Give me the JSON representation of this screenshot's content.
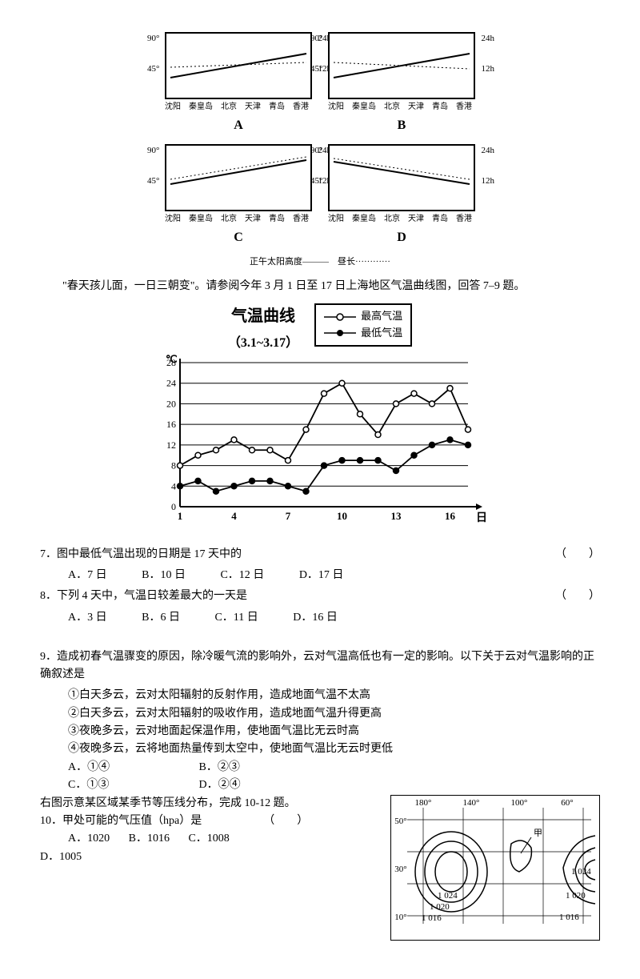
{
  "panelCharts": {
    "yLeft": [
      "90°",
      "45°"
    ],
    "yRight": [
      "24h",
      "12h"
    ],
    "xCities": [
      "沈阳",
      "秦皇岛",
      "北京",
      "天津",
      "青岛",
      "香港"
    ],
    "labels": [
      "A",
      "B",
      "C",
      "D"
    ],
    "legendText": "正午太阳高度———    昼长············"
  },
  "introText": "\"春天孩儿面，一日三朝变\"。请参阅今年 3 月 1 日至 17 日上海地区气温曲线图，回答 7–9 题。",
  "tempChart": {
    "title": "气温曲线",
    "subtitle": "（3.1~3.17）",
    "unit": "℃",
    "yticks": [
      "28",
      "24",
      "20",
      "16",
      "12",
      "8",
      "4",
      "0"
    ],
    "xticks": [
      "1",
      "4",
      "7",
      "10",
      "13",
      "16"
    ],
    "xunit": "日",
    "legend": {
      "hi": "最高气温",
      "lo": "最低气温"
    },
    "hi": [
      8,
      10,
      11,
      13,
      11,
      11,
      9,
      15,
      22,
      24,
      18,
      14,
      20,
      22,
      20,
      23,
      15
    ],
    "lo": [
      4,
      5,
      3,
      4,
      5,
      5,
      4,
      3,
      8,
      9,
      9,
      9,
      7,
      10,
      12,
      13,
      12
    ],
    "colors": {
      "line": "#000000",
      "bg": "#ffffff"
    }
  },
  "q7": {
    "stem": "7．图中最低气温出现的日期是 17 天中的",
    "opts": {
      "A": "A．7 日",
      "B": "B．10 日",
      "C": "C．12 日",
      "D": "D．17 日"
    }
  },
  "q8": {
    "stem": "8．下列 4 天中，气温日较差最大的一天是",
    "opts": {
      "A": "A．3 日",
      "B": "B．6 日",
      "C": "C．11 日",
      "D": "D．16 日"
    }
  },
  "q9": {
    "stem": "9．造成初春气温骤变的原因，除冷暖气流的影响外，云对气温高低也有一定的影响。以下关于云对气温影响的正确叙述是",
    "s1": "①白天多云，云对太阳辐射的反射作用，造成地面气温不太高",
    "s2": "②白天多云，云对太阳辐射的吸收作用，造成地面气温升得更高",
    "s3": "③夜晚多云，云对地面起保温作用，使地面气温比无云时高",
    "s4": "④夜晚多云，云将地面热量传到太空中，使地面气温比无云时更低",
    "oA": "A．①④",
    "oB": "B．②③",
    "oC": "C．①③",
    "oD": "D．②④"
  },
  "q10intro": "右图示意某区域某季节等压线分布，完成 10-12 题。",
  "q10": {
    "stem": "10．甲处可能的气压值（hpa）是　　　　　　（　　）",
    "oA": "A．1020",
    "oB": "B．1016",
    "oC": "C．1008",
    "oD": "D．1005"
  },
  "isobar": {
    "lons": [
      "180°",
      "140°",
      "100°",
      "60°"
    ],
    "lats": [
      "50°",
      "30°",
      "10°"
    ],
    "vals": [
      "1 024",
      "1 020",
      "1 016",
      "1 024",
      "1 020",
      "1 016"
    ],
    "jia": "甲"
  },
  "paren": "（　　）"
}
